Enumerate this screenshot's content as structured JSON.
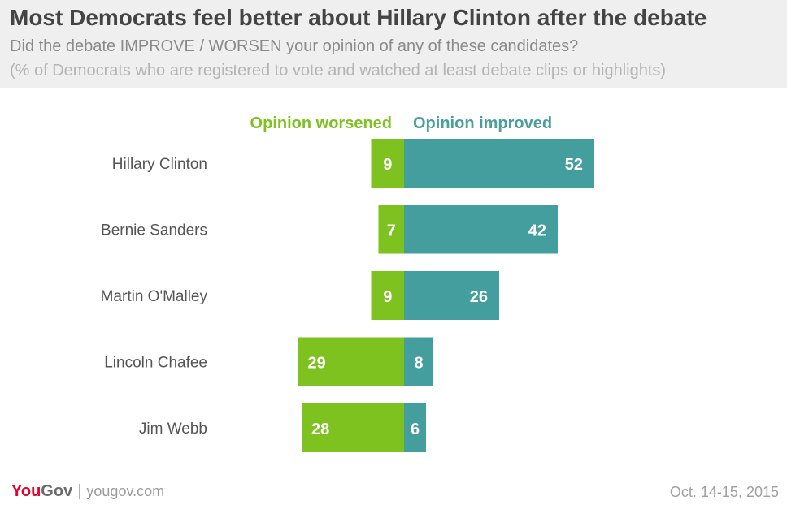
{
  "header": {
    "title": "Most Democrats feel better about Hillary Clinton after the debate",
    "subtitle": "Did the debate IMPROVE / WORSEN your opinion of any of these candidates?",
    "note": "(% of Democrats who are registered to vote and watched at least debate clips or highlights)"
  },
  "footer": {
    "brand_you": "You",
    "brand_gov": "Gov",
    "separator": "|",
    "url": "yougov.com",
    "date": "Oct. 14-15, 2015"
  },
  "chart_data": {
    "type": "bar",
    "orientation": "horizontal-diverging",
    "categories": [
      "Hillary Clinton",
      "Bernie Sanders",
      "Martin O'Malley",
      "Lincoln Chafee",
      "Jim Webb"
    ],
    "series": [
      {
        "name": "Opinion worsened",
        "values": [
          9,
          7,
          9,
          29,
          28
        ],
        "color": "#7dc21e",
        "label_color": "#7dc21e"
      },
      {
        "name": "Opinion improved",
        "values": [
          52,
          42,
          26,
          8,
          6
        ],
        "color": "#459e9e",
        "label_color": "#4a9e9e"
      }
    ],
    "grid": false
  }
}
